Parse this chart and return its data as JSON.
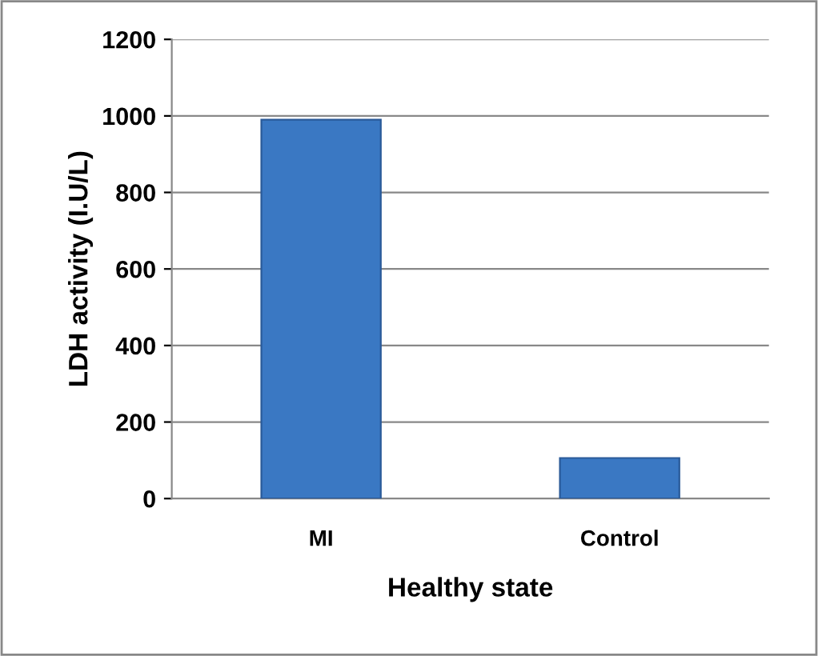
{
  "chart_data": {
    "type": "bar",
    "xlabel": "Healthy state",
    "ylabel": "LDH activity (I.U/L)",
    "categories": [
      "MI",
      "Control"
    ],
    "values": [
      990,
      106
    ],
    "color": "#3a78c3",
    "ylim": [
      0,
      1200
    ],
    "yticks": [
      0,
      200,
      400,
      600,
      800,
      1000,
      1200
    ],
    "grid": "y"
  }
}
